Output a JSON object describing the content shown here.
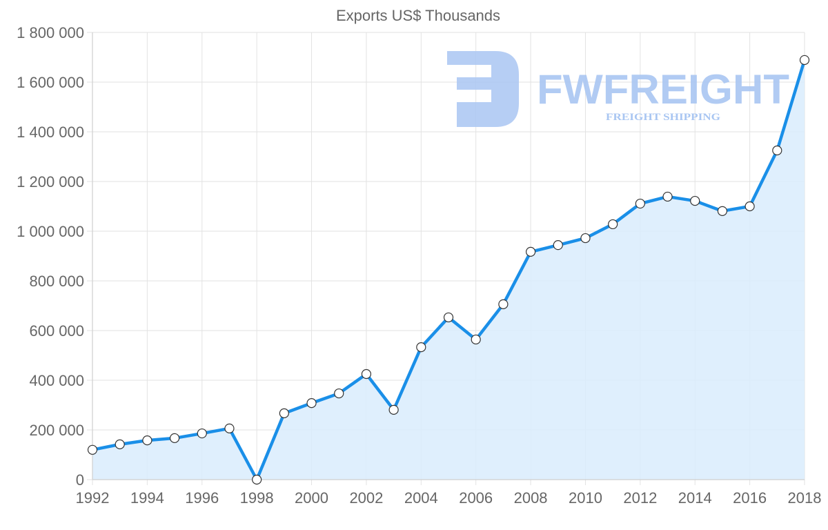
{
  "chart_data": {
    "type": "area",
    "title": "Exports US$ Thousands",
    "xlabel": "",
    "ylabel": "",
    "categories": [
      "1992",
      "1993",
      "1994",
      "1995",
      "1996",
      "1997",
      "1998",
      "1999",
      "2000",
      "2001",
      "2002",
      "2003",
      "2004",
      "2005",
      "2006",
      "2007",
      "2008",
      "2009",
      "2010",
      "2011",
      "2012",
      "2013",
      "2014",
      "2015",
      "2016",
      "2017",
      "2018"
    ],
    "series": [
      {
        "name": "Exports US$ Thousands",
        "values": [
          120000,
          142000,
          158000,
          167000,
          186000,
          206000,
          0,
          267000,
          308000,
          347000,
          425000,
          281000,
          533000,
          653000,
          564000,
          706000,
          917000,
          944000,
          972000,
          1028000,
          1111000,
          1139000,
          1122000,
          1081000,
          1100000,
          1325000,
          1689000
        ]
      }
    ],
    "ylim": [
      0,
      1800000
    ],
    "y_ticks": [
      0,
      200000,
      400000,
      600000,
      800000,
      1000000,
      1200000,
      1400000,
      1600000,
      1800000
    ],
    "y_tick_labels": [
      "0",
      "200 000",
      "400 000",
      "600 000",
      "800 000",
      "1 000 000",
      "1 200 000",
      "1 400 000",
      "1 600 000",
      "1 800 000"
    ],
    "x_tick_labels": [
      "1992",
      "1994",
      "1996",
      "1998",
      "2000",
      "2002",
      "2004",
      "2006",
      "2008",
      "2010",
      "2012",
      "2014",
      "2016",
      "2018"
    ],
    "grid": true,
    "legend": "none",
    "colors": {
      "line": "#1a8fe8",
      "fill": "#d9ecfd",
      "point_fill": "#ffffff",
      "point_stroke": "#333333",
      "grid": "#e2e2e2",
      "text": "#666666"
    }
  },
  "watermark": {
    "brand": "FWFREIGHT",
    "tagline": "FREIGHT SHIPPING",
    "color": "#a9c6f2"
  }
}
